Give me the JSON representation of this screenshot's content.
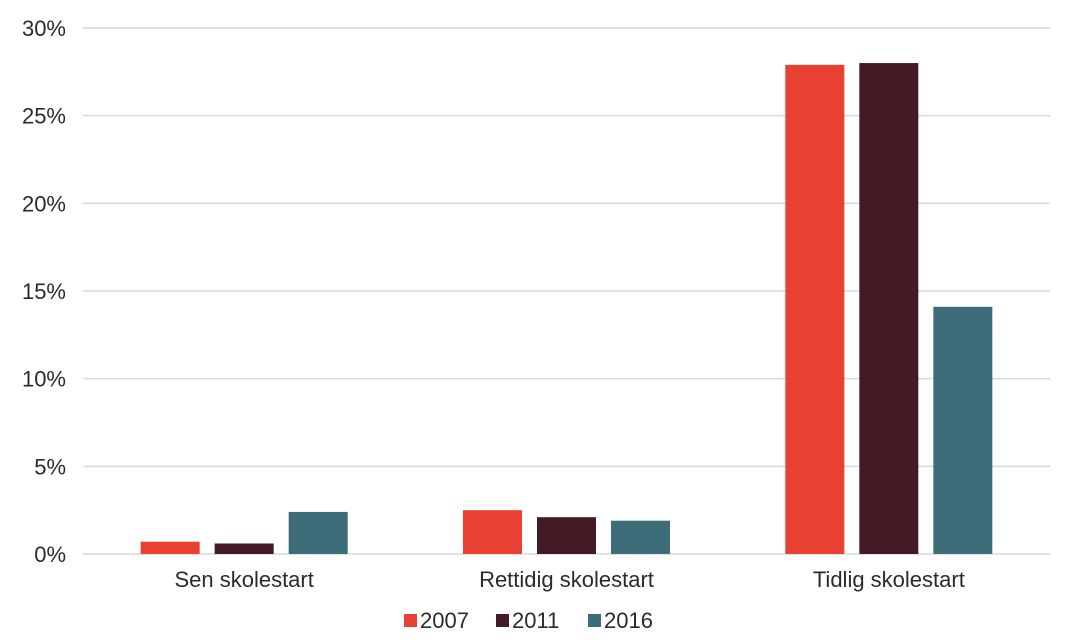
{
  "chart_data": {
    "type": "bar",
    "title": "",
    "xlabel": "",
    "ylabel": "",
    "categories": [
      "Sen skolestart",
      "Rettidig skolestart",
      "Tidlig skolestart"
    ],
    "series": [
      {
        "name": "2007",
        "color": "#e84032",
        "values": [
          0.7,
          2.5,
          27.9
        ]
      },
      {
        "name": "2011",
        "color": "#421b24",
        "values": [
          0.6,
          2.1,
          28.0
        ]
      },
      {
        "name": "2016",
        "color": "#3c6d78",
        "values": [
          2.4,
          1.9,
          14.1
        ]
      }
    ],
    "ylim": [
      0,
      30
    ],
    "yticks": [
      0,
      5,
      10,
      15,
      20,
      25,
      30
    ],
    "ytick_labels": [
      "0%",
      "5%",
      "10%",
      "15%",
      "20%",
      "25%",
      "30%"
    ],
    "grid": true,
    "gridline_color": "#d9d9d9",
    "legend_position": "bottom-center"
  }
}
